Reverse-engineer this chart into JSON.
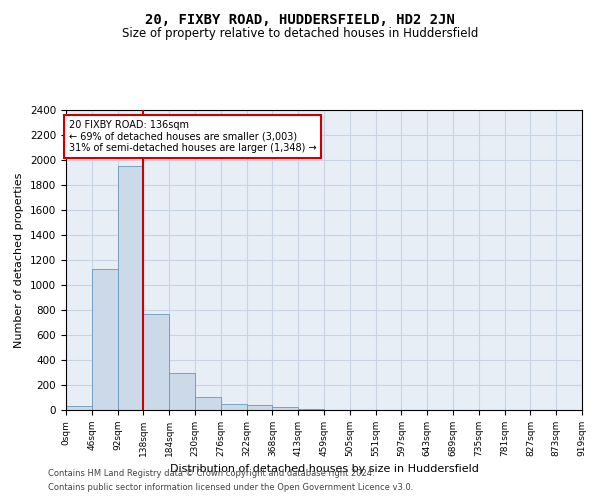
{
  "title": "20, FIXBY ROAD, HUDDERSFIELD, HD2 2JN",
  "subtitle": "Size of property relative to detached houses in Huddersfield",
  "xlabel": "Distribution of detached houses by size in Huddersfield",
  "ylabel": "Number of detached properties",
  "bar_values": [
    35,
    1130,
    1950,
    770,
    300,
    105,
    47,
    37,
    22,
    12,
    0,
    0,
    0,
    0,
    0,
    0,
    0,
    0,
    0,
    0
  ],
  "bin_labels": [
    "0sqm",
    "46sqm",
    "92sqm",
    "138sqm",
    "184sqm",
    "230sqm",
    "276sqm",
    "322sqm",
    "368sqm",
    "413sqm",
    "459sqm",
    "505sqm",
    "551sqm",
    "597sqm",
    "643sqm",
    "689sqm",
    "735sqm",
    "781sqm",
    "827sqm",
    "873sqm",
    "919sqm"
  ],
  "bar_color": "#ccd9e8",
  "bar_edge_color": "#6699bb",
  "grid_color": "#c8d4e4",
  "bg_color": "#e8eef6",
  "vline_color": "#cc0000",
  "annotation_text": "20 FIXBY ROAD: 136sqm\n← 69% of detached houses are smaller (3,003)\n31% of semi-detached houses are larger (1,348) →",
  "annotation_box_color": "#ffffff",
  "annotation_box_edge": "#cc0000",
  "ylim": [
    0,
    2400
  ],
  "yticks": [
    0,
    200,
    400,
    600,
    800,
    1000,
    1200,
    1400,
    1600,
    1800,
    2000,
    2200,
    2400
  ],
  "footer1": "Contains HM Land Registry data © Crown copyright and database right 2024.",
  "footer2": "Contains public sector information licensed under the Open Government Licence v3.0.",
  "property_sqm": 136,
  "num_bins": 20,
  "bin_width": 46,
  "vline_x": 138
}
